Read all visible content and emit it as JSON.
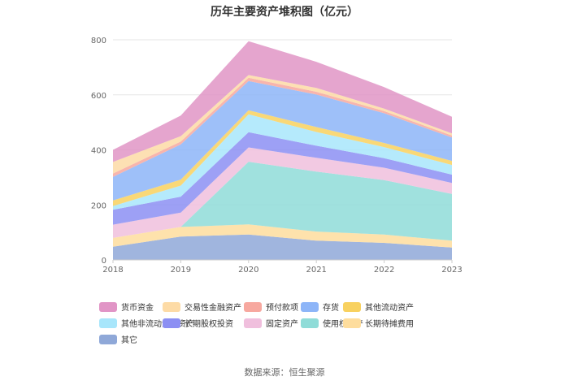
{
  "chart_data": {
    "type": "area",
    "stacked": true,
    "title": "历年主要资产堆积图（亿元）",
    "xlabel": "",
    "ylabel": "",
    "ylim": [
      0,
      800
    ],
    "yticks": [
      0,
      200,
      400,
      600,
      800
    ],
    "categories": [
      "2018",
      "2019",
      "2020",
      "2021",
      "2022",
      "2023"
    ],
    "series": [
      {
        "name": "其它",
        "color": "#8fa8d8",
        "values": [
          48,
          85,
          92,
          70,
          62,
          45
        ]
      },
      {
        "name": "长期待摊费用",
        "color": "#fedd9d",
        "values": [
          32,
          35,
          37,
          33,
          30,
          25
        ]
      },
      {
        "name": "使用权资产",
        "color": "#8fdcd8",
        "values": [
          0,
          0,
          228,
          218,
          198,
          170
        ]
      },
      {
        "name": "固定资产",
        "color": "#f0bfdd",
        "values": [
          48,
          52,
          52,
          50,
          45,
          40
        ]
      },
      {
        "name": "长期股权投资",
        "color": "#8c8ff3",
        "values": [
          54,
          58,
          55,
          44,
          35,
          30
        ]
      },
      {
        "name": "其他非流动金融资产",
        "color": "#a8e6fb",
        "values": [
          14,
          40,
          65,
          50,
          40,
          35
        ]
      },
      {
        "name": "其他流动资产",
        "color": "#f8d15f",
        "values": [
          20,
          22,
          15,
          18,
          15,
          15
        ]
      },
      {
        "name": "存货",
        "color": "#8db5f8",
        "values": [
          86,
          128,
          106,
          118,
          108,
          85
        ]
      },
      {
        "name": "预付款项",
        "color": "#f7a89f",
        "values": [
          12,
          10,
          12,
          10,
          8,
          7
        ]
      },
      {
        "name": "交易性金融资产",
        "color": "#fddba6",
        "values": [
          42,
          20,
          10,
          14,
          9,
          8
        ]
      },
      {
        "name": "货币资金",
        "color": "#e195c6",
        "values": [
          44,
          75,
          123,
          95,
          78,
          60
        ]
      }
    ]
  },
  "legend": {
    "order": [
      "货币资金",
      "交易性金融资产",
      "预付款项",
      "存货",
      "其他流动资产",
      "其他非流动金融资产",
      "长期股权投资",
      "固定资产",
      "使用权资产",
      "长期待摊费用",
      "其它"
    ]
  },
  "footer": {
    "source": "数据来源：恒生聚源"
  }
}
